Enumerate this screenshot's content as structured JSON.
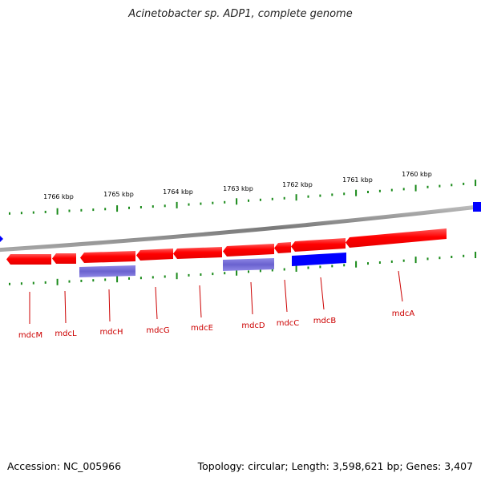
{
  "title": "Acinetobacter sp. ADP1, complete genome",
  "footer": {
    "accession": "Accession: NC_005966",
    "summary": "Topology: circular; Length: 3,598,621 bp; Genes: 3,407"
  },
  "colors": {
    "forward_gene": "#ff0000",
    "reverse_gene": "#0000ff",
    "other_feature": "#6f66d6",
    "ticks": "#1a8a1a",
    "backbone": "#8c8c8c",
    "label": "#cc0000"
  },
  "ticks": [
    {
      "label": "1766 kbp"
    },
    {
      "label": "1765 kbp"
    },
    {
      "label": "1764 kbp"
    },
    {
      "label": "1763 kbp"
    },
    {
      "label": "1762 kbp"
    },
    {
      "label": "1761 kbp"
    },
    {
      "label": "1760 kbp"
    }
  ],
  "genes": [
    {
      "label": "mdcM"
    },
    {
      "label": "mdcL"
    },
    {
      "label": "mdcH"
    },
    {
      "label": "mdcG"
    },
    {
      "label": "mdcE"
    },
    {
      "label": "mdcD"
    },
    {
      "label": "mdcC"
    },
    {
      "label": "mdcB"
    },
    {
      "label": "mdcA"
    }
  ]
}
